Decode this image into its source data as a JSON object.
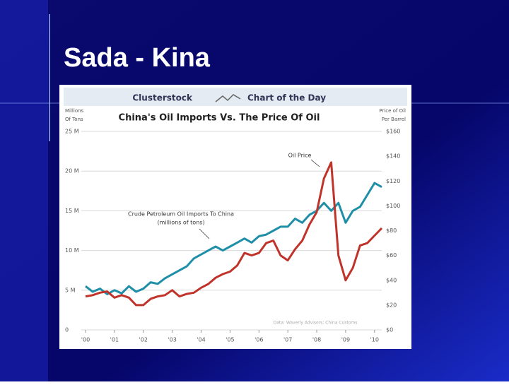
{
  "slide_title": "Sada - Kina",
  "chart_data": {
    "type": "line",
    "header": [
      "Clusterstock",
      "Chart of the Day"
    ],
    "title": "China's Oil Imports Vs. The Price Of Oil",
    "y_label": [
      "Millions",
      "Of Tons"
    ],
    "y2_label": [
      "Price of Oil",
      "Per Barrel"
    ],
    "annotations": [
      {
        "lines": [
          "Oil Price"
        ]
      },
      {
        "lines": [
          "Crude Petroleum Oil Imports To China",
          "(millions of tons)"
        ]
      },
      {
        "lines": [
          "Data: Waverly Advisors; China Customs"
        ]
      }
    ],
    "x": [
      2000,
      2000.25,
      2000.5,
      2000.75,
      2001,
      2001.25,
      2001.5,
      2001.75,
      2002,
      2002.25,
      2002.5,
      2002.75,
      2003,
      2003.25,
      2003.5,
      2003.75,
      2004,
      2004.25,
      2004.5,
      2004.75,
      2005,
      2005.25,
      2005.5,
      2005.75,
      2006,
      2006.25,
      2006.5,
      2006.75,
      2007,
      2007.25,
      2007.5,
      2007.75,
      2008,
      2008.25,
      2008.5,
      2008.75,
      2009,
      2009.25,
      2009.5,
      2009.75,
      2010,
      2010.25
    ],
    "series": [
      {
        "name": "Crude Petroleum Oil Imports To China",
        "color": "#1f8fa8",
        "axis": "y",
        "values": [
          5.5,
          4.8,
          5.2,
          4.5,
          5,
          4.6,
          5.5,
          4.8,
          5.2,
          6,
          5.8,
          6.5,
          7,
          7.5,
          8,
          9,
          9.5,
          10,
          10.5,
          10,
          10.5,
          11,
          11.5,
          11,
          11.8,
          12,
          12.5,
          13,
          13,
          14,
          13.5,
          14.5,
          15,
          16,
          15,
          16,
          13.5,
          15,
          15.5,
          17,
          18.5,
          18
        ]
      },
      {
        "name": "Oil Price",
        "color": "#c0332a",
        "axis": "y2",
        "values": [
          27,
          28,
          30,
          31,
          26,
          28,
          26,
          20,
          20,
          25,
          27,
          28,
          32,
          27,
          29,
          30,
          34,
          37,
          42,
          45,
          47,
          52,
          62,
          60,
          62,
          70,
          72,
          60,
          56,
          65,
          72,
          85,
          95,
          122,
          135,
          60,
          40,
          50,
          68,
          70,
          76,
          82
        ]
      }
    ],
    "xlim": [
      2000,
      2010.25
    ],
    "xticks": [
      {
        "value": 2000,
        "label": "'00"
      },
      {
        "value": 2001,
        "label": "'01"
      },
      {
        "value": 2002,
        "label": "'02"
      },
      {
        "value": 2003,
        "label": "'03"
      },
      {
        "value": 2004,
        "label": "'04"
      },
      {
        "value": 2005,
        "label": "'05"
      },
      {
        "value": 2006,
        "label": "'06"
      },
      {
        "value": 2007,
        "label": "'07"
      },
      {
        "value": 2008,
        "label": "'08"
      },
      {
        "value": 2009,
        "label": "'09"
      },
      {
        "value": 2010,
        "label": "'10"
      }
    ],
    "ylim": [
      0,
      25
    ],
    "yticks": [
      0,
      {
        "value": 5,
        "label": "5 M"
      },
      {
        "value": 10,
        "label": "10 M"
      },
      {
        "value": 15,
        "label": "15 M"
      },
      {
        "value": 20,
        "label": "20 M"
      },
      {
        "value": 25,
        "label": "25 M"
      }
    ],
    "y2lim": [
      0,
      160
    ],
    "y2ticks": [
      {
        "value": 0,
        "label": "$0"
      },
      {
        "value": 20,
        "label": "$20"
      },
      {
        "value": 40,
        "label": "$40"
      },
      {
        "value": 60,
        "label": "$60"
      },
      {
        "value": 80,
        "label": "$80"
      },
      {
        "value": 100,
        "label": "$100"
      },
      {
        "value": 120,
        "label": "$120"
      },
      {
        "value": 140,
        "label": "$140"
      },
      {
        "value": 160,
        "label": "$160"
      }
    ],
    "grid": true
  }
}
